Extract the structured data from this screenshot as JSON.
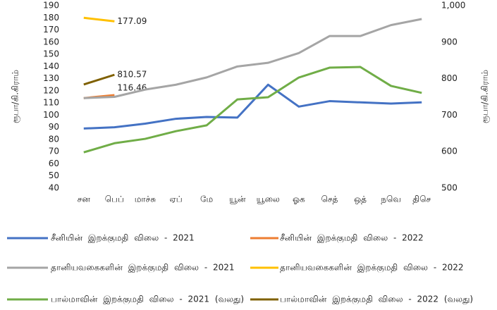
{
  "chart_data": {
    "type": "line",
    "categories": [
      "சன",
      "பெப்",
      "மாச்சு",
      "ஏப்",
      "மே",
      "யூன்",
      "யூலை",
      "ஓக",
      "செத்",
      "ஒத்",
      "நவெ",
      "திசெ"
    ],
    "ylabel": "ரூபா/கி.கிராம்",
    "y2label": "ரூபா/கி.கிராம்",
    "ylim": [
      40,
      190
    ],
    "yticks": [
      40,
      50,
      60,
      70,
      80,
      90,
      100,
      110,
      120,
      130,
      140,
      150,
      160,
      170,
      180,
      190
    ],
    "y2lim": [
      500,
      1000
    ],
    "y2ticks": [
      500,
      600,
      700,
      800,
      900,
      {
        "value": 1000,
        "label": "1,000"
      }
    ],
    "grid": false,
    "legend": "bottom",
    "series": [
      {
        "name": "சீனியின் இறக்குமதி விலை - 2021",
        "color": "#4472c4",
        "values": [
          89,
          90,
          93,
          97,
          98.5,
          98,
          125,
          107,
          111.5,
          110.5,
          109.5,
          110.5
        ]
      },
      {
        "name": "சீனியின் இறக்குமதி விலை - 2022",
        "color": "#ed7d31",
        "values": [
          114,
          116.46,
          null,
          null,
          null,
          null,
          null,
          null,
          null,
          null,
          null,
          null
        ],
        "value_labels": [
          null,
          "116.46",
          null,
          null,
          null,
          null,
          null,
          null,
          null,
          null,
          null,
          null
        ]
      },
      {
        "name": "தானியவகைகளின் இறக்குமதி விலை - 2021",
        "color": "#a5a5a5",
        "values": [
          114,
          115,
          121,
          125,
          131,
          140,
          143,
          151,
          165,
          165,
          174,
          179
        ]
      },
      {
        "name": "தானியவகைகளின் இறக்குமதி விலை - 2022",
        "color": "#ffc000",
        "values": [
          180,
          177.09,
          null,
          null,
          null,
          null,
          null,
          null,
          null,
          null,
          null,
          null
        ],
        "value_labels": [
          null,
          "177.09",
          null,
          null,
          null,
          null,
          null,
          null,
          null,
          null,
          null,
          null
        ]
      },
      {
        "name": "பால்மாவின் இறக்குமதி விலை - 2021 (வலது)",
        "color": "#70ad47",
        "axis": "y2",
        "values": [
          598,
          623,
          635,
          656,
          672,
          743,
          749,
          803,
          830,
          832,
          780,
          761
        ]
      },
      {
        "name": "பால்மாவின் இறக்குமதி விலை - 2022 (வலது)",
        "color": "#7f6000",
        "axis": "y2",
        "values": [
          784,
          810.57,
          null,
          null,
          null,
          null,
          null,
          null,
          null,
          null,
          null,
          null
        ],
        "value_labels": [
          null,
          "810.57",
          null,
          null,
          null,
          null,
          null,
          null,
          null,
          null,
          null,
          null
        ]
      }
    ]
  }
}
